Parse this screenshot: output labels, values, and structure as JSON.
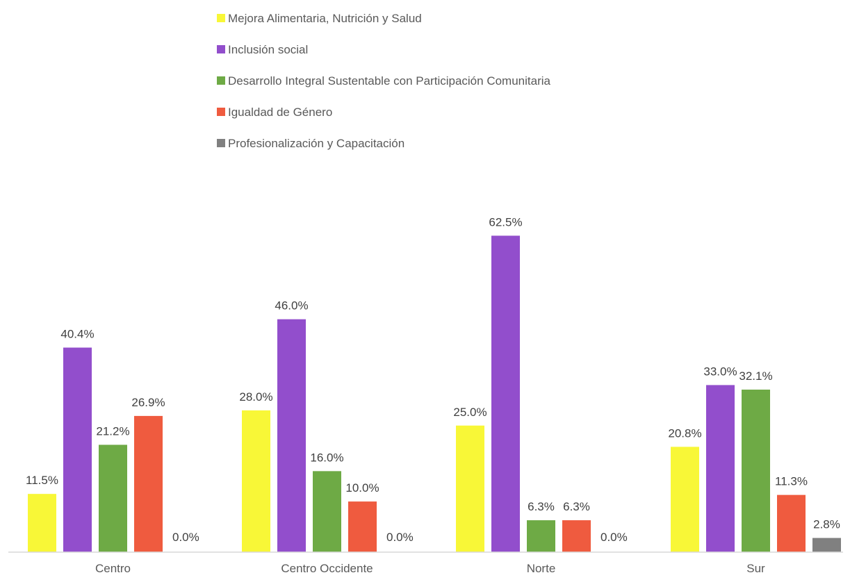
{
  "chart_data": {
    "type": "bar",
    "title": "",
    "xlabel": "",
    "ylabel": "",
    "legend_position": "top",
    "grid": false,
    "ylim": [
      0,
      70
    ],
    "categories": [
      "Centro",
      "Centro Occidente",
      "Norte",
      "Sur"
    ],
    "series": [
      {
        "name": "Mejora Alimentaria, Nutrición y Salud",
        "color": "#F8F737",
        "values": [
          11.5,
          28.0,
          25.0,
          20.8
        ]
      },
      {
        "name": "Inclusión social",
        "color": "#924ECC",
        "values": [
          40.4,
          46.0,
          62.5,
          33.0
        ]
      },
      {
        "name": "Desarrollo Integral Sustentable con Participación Comunitaria",
        "color": "#6EAA45",
        "values": [
          21.2,
          16.0,
          6.3,
          32.1
        ]
      },
      {
        "name": " Igualdad de Género",
        "color": "#EF5B3F",
        "values": [
          26.9,
          10.0,
          6.3,
          11.3
        ]
      },
      {
        "name": "Profesionalización y Capacitación",
        "color": "#808080",
        "values": [
          0.0,
          0.0,
          0.0,
          2.8
        ]
      }
    ],
    "data_label_suffix": "%"
  }
}
